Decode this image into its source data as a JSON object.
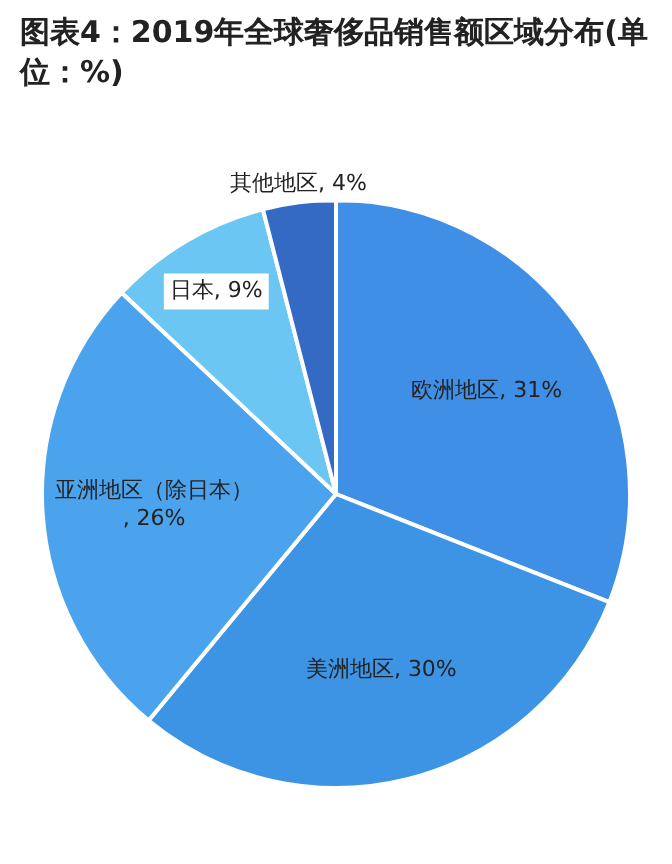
{
  "chart_data": {
    "type": "pie",
    "title": "图表4：2019年全球奢侈品销售额区域分布(单位：%)",
    "categories": [
      "欧洲地区",
      "美洲地区",
      "亚洲地区（除日本）",
      "日本",
      "其他地区"
    ],
    "values": [
      31,
      30,
      26,
      9,
      4
    ],
    "value_labels": [
      ", 31%",
      ", 30%",
      ", 26%",
      ", 9%",
      ", 4%"
    ],
    "colors": [
      "#3f8fe6",
      "#3d93e4",
      "#4aa3ec",
      "#6cc6f4",
      "#3469c4"
    ]
  }
}
